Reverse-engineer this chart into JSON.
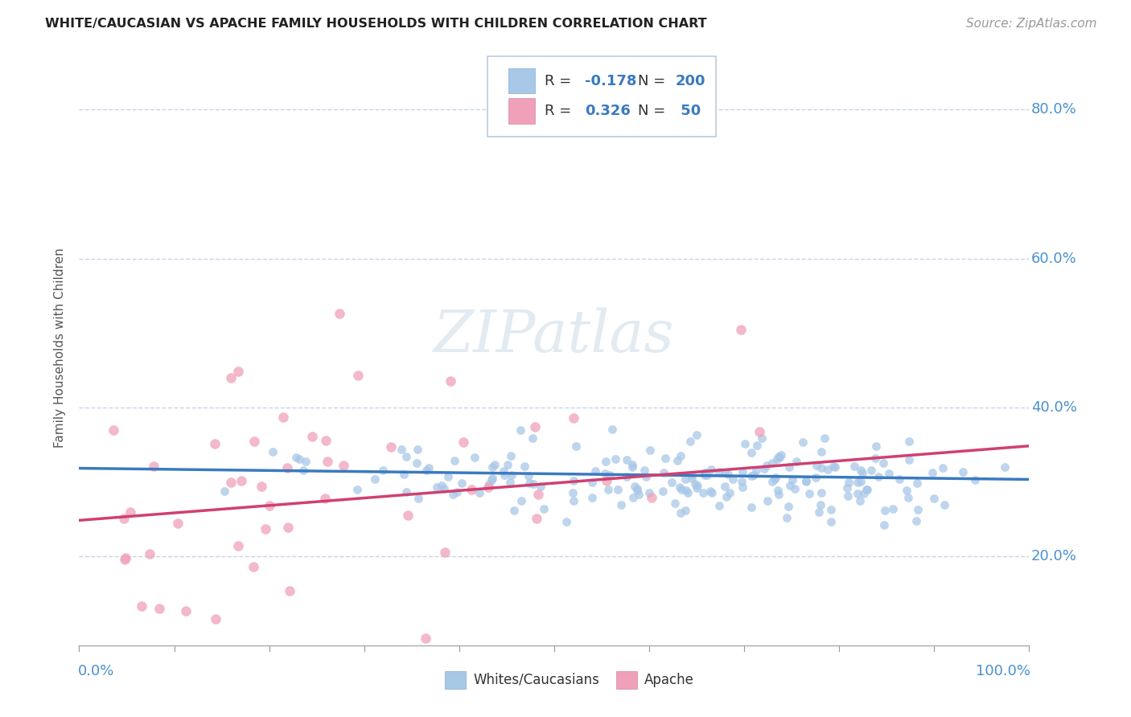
{
  "title": "WHITE/CAUCASIAN VS APACHE FAMILY HOUSEHOLDS WITH CHILDREN CORRELATION CHART",
  "source": "Source: ZipAtlas.com",
  "ylabel": "Family Households with Children",
  "xlim": [
    0.0,
    1.0
  ],
  "ylim": [
    0.08,
    0.88
  ],
  "yticks": [
    0.2,
    0.4,
    0.6,
    0.8
  ],
  "ytick_labels": [
    "20.0%",
    "40.0%",
    "60.0%",
    "80.0%"
  ],
  "whites_R": -0.178,
  "whites_N": 200,
  "apache_R": 0.326,
  "apache_N": 50,
  "whites_color": "#a8c8e8",
  "apache_color": "#f0a0b8",
  "whites_line_color": "#3a7abf",
  "apache_line_color": "#d04070",
  "watermark": "ZIPatlas",
  "background_color": "#ffffff",
  "grid_color": "#c8d4e4",
  "seed": 12
}
